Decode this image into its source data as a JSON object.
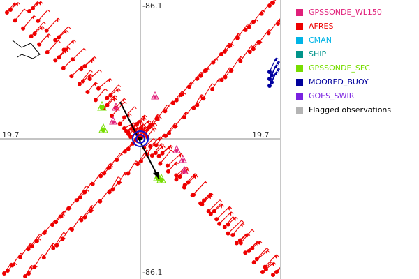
{
  "map": {
    "coordinates": {
      "top_longitude": "-86.1",
      "bottom_longitude": "-86.1",
      "left_latitude": "19.7",
      "right_latitude": "19.7"
    },
    "colors": {
      "background": "#ffffff",
      "crosshair": "#8a8a8a",
      "afres": "#ee0000",
      "gpssonde_wl150": "#e0207a",
      "gpssonde_sfc": "#77dd00",
      "moored_buoy": "#0000a0",
      "center_circle": "#1010d0",
      "motion_vector": "#000000"
    }
  },
  "legend": {
    "items": [
      {
        "label": "GPSSONDE_WL150",
        "color": "#e0207a"
      },
      {
        "label": "AFRES",
        "color": "#ee0000"
      },
      {
        "label": "CMAN",
        "color": "#00b4e6"
      },
      {
        "label": "SHIP",
        "color": "#00948a"
      },
      {
        "label": "GPSSONDE_SFC",
        "color": "#77dd00"
      },
      {
        "label": "MOORED_BUOY",
        "color": "#00009c"
      },
      {
        "label": "GOES_SWIR",
        "color": "#7a22e0"
      },
      {
        "label": "Flagged observations",
        "color": "#b4b4b4"
      }
    ]
  }
}
